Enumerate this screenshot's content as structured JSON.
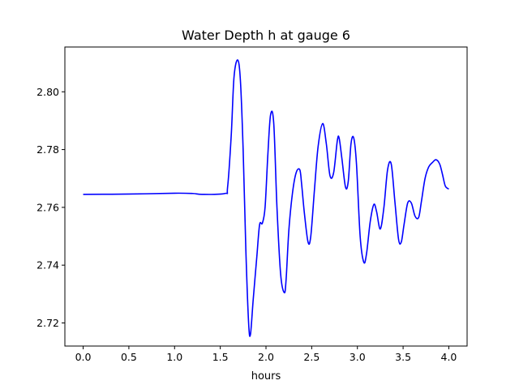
{
  "chart_data": {
    "type": "line",
    "title": "Water Depth h at gauge 6",
    "xlabel": "hours",
    "ylabel": "",
    "xlim": [
      -0.2,
      4.2
    ],
    "ylim": [
      2.712,
      2.8155
    ],
    "xticks": [
      0.0,
      0.5,
      1.0,
      1.5,
      2.0,
      2.5,
      3.0,
      3.5,
      4.0
    ],
    "xtick_labels": [
      "0.0",
      "0.5",
      "1.0",
      "1.5",
      "2.0",
      "2.5",
      "3.0",
      "3.5",
      "4.0"
    ],
    "yticks": [
      2.72,
      2.74,
      2.76,
      2.78,
      2.8
    ],
    "ytick_labels": [
      "2.72",
      "2.74",
      "2.76",
      "2.78",
      "2.80"
    ],
    "grid": false,
    "legend": "none",
    "series": [
      {
        "color": "#0000ff",
        "x": [
          0.0,
          0.5,
          1.0,
          1.2,
          1.3,
          1.55,
          1.58,
          1.62,
          1.65,
          1.69,
          1.72,
          1.75,
          1.78,
          1.81,
          1.83,
          1.86,
          1.9,
          1.93,
          1.96,
          1.99,
          2.02,
          2.05,
          2.085,
          2.12,
          2.16,
          2.2,
          2.22,
          2.25,
          2.29,
          2.33,
          2.37,
          2.39,
          2.42,
          2.46,
          2.49,
          2.53,
          2.57,
          2.62,
          2.66,
          2.7,
          2.74,
          2.78,
          2.8,
          2.83,
          2.87,
          2.9,
          2.93,
          2.96,
          2.99,
          3.03,
          3.07,
          3.1,
          3.14,
          3.18,
          3.21,
          3.25,
          3.29,
          3.33,
          3.37,
          3.41,
          3.45,
          3.48,
          3.51,
          3.55,
          3.59,
          3.63,
          3.67,
          3.7,
          3.74,
          3.78,
          3.82,
          3.86,
          3.9,
          3.93,
          3.96,
          3.99,
          4.0
        ],
        "y": [
          2.7645,
          2.7646,
          2.7649,
          2.7648,
          2.7645,
          2.7648,
          2.767,
          2.785,
          2.805,
          2.811,
          2.804,
          2.78,
          2.745,
          2.72,
          2.716,
          2.728,
          2.743,
          2.754,
          2.7545,
          2.76,
          2.778,
          2.792,
          2.789,
          2.76,
          2.737,
          2.7305,
          2.735,
          2.752,
          2.765,
          2.772,
          2.773,
          2.768,
          2.758,
          2.748,
          2.75,
          2.766,
          2.781,
          2.789,
          2.782,
          2.771,
          2.772,
          2.783,
          2.784,
          2.777,
          2.767,
          2.769,
          2.782,
          2.784,
          2.775,
          2.75,
          2.741,
          2.744,
          2.755,
          2.761,
          2.7585,
          2.7525,
          2.76,
          2.773,
          2.775,
          2.762,
          2.749,
          2.748,
          2.754,
          2.7615,
          2.7615,
          2.757,
          2.7565,
          2.762,
          2.77,
          2.774,
          2.7755,
          2.7765,
          2.775,
          2.7715,
          2.7675,
          2.7665,
          2.7665
        ]
      }
    ]
  }
}
